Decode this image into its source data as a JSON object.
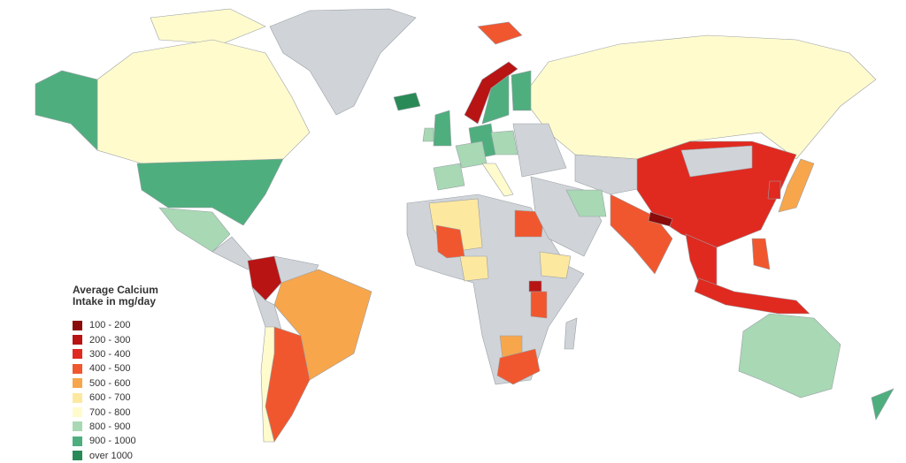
{
  "legend": {
    "title": "Average Calcium Intake in mg/day",
    "items": [
      {
        "label": "100 - 200",
        "color": "#8b0a0a"
      },
      {
        "label": "200 - 300",
        "color": "#b81414"
      },
      {
        "label": "300 - 400",
        "color": "#e02a20"
      },
      {
        "label": "400 - 500",
        "color": "#f0572f"
      },
      {
        "label": "500 - 600",
        "color": "#f7a64c"
      },
      {
        "label": "600 - 700",
        "color": "#fde8a0"
      },
      {
        "label": "700 - 800",
        "color": "#fffbcd"
      },
      {
        "label": "800 - 900",
        "color": "#a8d8b4"
      },
      {
        "label": "900 - 1000",
        "color": "#4fae7e"
      },
      {
        "label": "over 1000",
        "color": "#2a8a57"
      }
    ]
  }
}
